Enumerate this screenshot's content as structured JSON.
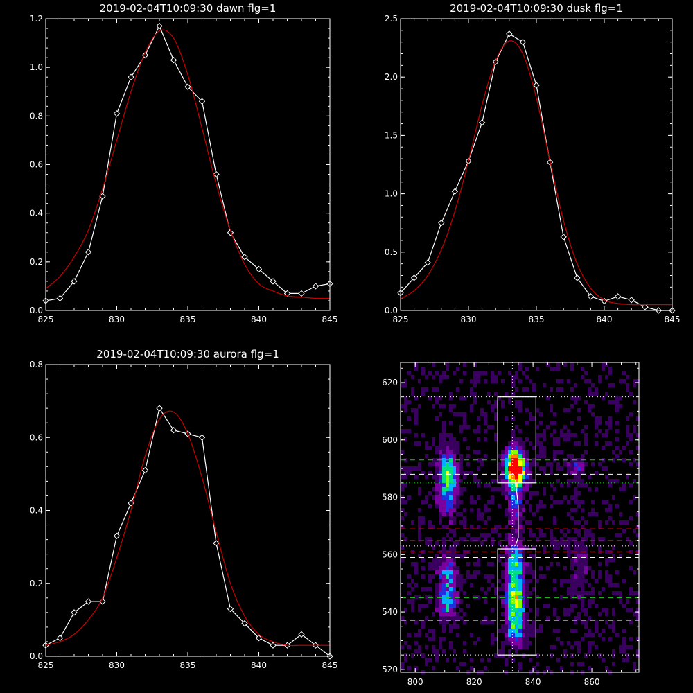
{
  "colors": {
    "background": "#000000",
    "axis": "#ffffff",
    "data_line": "#ffffff",
    "fit_line": "#cc0000"
  },
  "chart_data": [
    {
      "type": "line",
      "title": "2019-02-04T10:09:30 dawn flg=1",
      "xlim": [
        825,
        845
      ],
      "ylim": [
        0,
        1.2
      ],
      "xticks": [
        "825",
        "830",
        "835",
        "840",
        "845"
      ],
      "yticks": [
        "0.0",
        "0.2",
        "0.4",
        "0.6",
        "0.8",
        "1.0",
        "1.2"
      ],
      "series": [
        {
          "kind": "data",
          "marker": "diamond",
          "color": "#ffffff",
          "x": [
            825,
            826,
            827,
            828,
            829,
            830,
            831,
            832,
            833,
            834,
            835,
            836,
            837,
            838,
            839,
            840,
            841,
            842,
            843,
            844,
            845
          ],
          "y": [
            0.04,
            0.05,
            0.12,
            0.24,
            0.47,
            0.81,
            0.96,
            1.05,
            1.17,
            1.03,
            0.92,
            0.86,
            0.56,
            0.32,
            0.22,
            0.17,
            0.12,
            0.07,
            0.07,
            0.1,
            0.11
          ]
        },
        {
          "kind": "fit",
          "color": "#cc0000",
          "x": [
            825,
            826,
            827,
            828,
            829,
            830,
            831,
            832,
            833,
            834,
            835,
            836,
            837,
            838,
            839,
            840,
            841,
            842,
            843,
            844,
            845
          ],
          "y": [
            0.09,
            0.14,
            0.22,
            0.33,
            0.5,
            0.7,
            0.9,
            1.06,
            1.15,
            1.12,
            0.97,
            0.75,
            0.52,
            0.33,
            0.19,
            0.11,
            0.08,
            0.06,
            0.055,
            0.05,
            0.05
          ]
        }
      ]
    },
    {
      "type": "line",
      "title": "2019-02-04T10:09:30 dusk flg=1",
      "xlim": [
        825,
        845
      ],
      "ylim": [
        0,
        2.5
      ],
      "xticks": [
        "825",
        "830",
        "835",
        "840",
        "845"
      ],
      "yticks": [
        "0.0",
        "0.5",
        "1.0",
        "1.5",
        "2.0",
        "2.5"
      ],
      "series": [
        {
          "kind": "data",
          "marker": "diamond",
          "color": "#ffffff",
          "x": [
            825,
            826,
            827,
            828,
            829,
            830,
            831,
            832,
            833,
            834,
            835,
            836,
            837,
            838,
            839,
            840,
            841,
            842,
            843,
            844,
            845
          ],
          "y": [
            0.15,
            0.28,
            0.41,
            0.75,
            1.02,
            1.28,
            1.61,
            2.13,
            2.37,
            2.3,
            1.93,
            1.27,
            0.63,
            0.28,
            0.12,
            0.08,
            0.12,
            0.09,
            0.03,
            0.0,
            0.0
          ]
        },
        {
          "kind": "fit",
          "color": "#cc0000",
          "x": [
            825,
            826,
            827,
            828,
            829,
            830,
            831,
            832,
            833,
            834,
            835,
            836,
            837,
            838,
            839,
            840,
            841,
            842,
            843,
            844,
            845
          ],
          "y": [
            0.1,
            0.17,
            0.3,
            0.52,
            0.85,
            1.28,
            1.76,
            2.14,
            2.31,
            2.2,
            1.82,
            1.28,
            0.77,
            0.4,
            0.19,
            0.09,
            0.06,
            0.05,
            0.05,
            0.05,
            0.05
          ]
        }
      ]
    },
    {
      "type": "line",
      "title": "2019-02-04T10:09:30 aurora flg=1",
      "xlim": [
        825,
        845
      ],
      "ylim": [
        0,
        0.8
      ],
      "xticks": [
        "825",
        "830",
        "835",
        "840",
        "845"
      ],
      "yticks": [
        "0.0",
        "0.2",
        "0.4",
        "0.6",
        "0.8"
      ],
      "series": [
        {
          "kind": "data",
          "marker": "diamond",
          "color": "#ffffff",
          "x": [
            825,
            826,
            827,
            828,
            829,
            830,
            831,
            832,
            833,
            834,
            835,
            836,
            837,
            838,
            839,
            840,
            841,
            842,
            843,
            844,
            845
          ],
          "y": [
            0.03,
            0.05,
            0.12,
            0.15,
            0.15,
            0.33,
            0.42,
            0.51,
            0.68,
            0.62,
            0.61,
            0.6,
            0.31,
            0.13,
            0.09,
            0.05,
            0.03,
            0.03,
            0.06,
            0.03,
            0.0
          ]
        },
        {
          "kind": "fit",
          "color": "#cc0000",
          "x": [
            825,
            826,
            827,
            828,
            829,
            830,
            831,
            832,
            833,
            834,
            835,
            836,
            837,
            838,
            839,
            840,
            841,
            842,
            843,
            844,
            845
          ],
          "y": [
            0.03,
            0.04,
            0.06,
            0.1,
            0.16,
            0.27,
            0.4,
            0.55,
            0.65,
            0.67,
            0.61,
            0.49,
            0.34,
            0.2,
            0.11,
            0.06,
            0.04,
            0.03,
            0.03,
            0.03,
            0.03
          ]
        }
      ]
    },
    {
      "type": "heatmap",
      "title": "",
      "xlim": [
        795,
        876
      ],
      "ylim": [
        519,
        627
      ],
      "xticks": [
        "800",
        "820",
        "840",
        "860"
      ],
      "yticks": [
        "520",
        "540",
        "560",
        "580",
        "600",
        "620"
      ],
      "colormap": [
        "#000000",
        "#3a0060",
        "#7a00a0",
        "#2030e0",
        "#00b0ff",
        "#00e080",
        "#80ff00",
        "#ffff00",
        "#ff8000",
        "#ff0000"
      ],
      "blobs": [
        {
          "cx": 811,
          "cy": 589,
          "sx": 2.0,
          "sy": 5,
          "amp": 0.55
        },
        {
          "cx": 811,
          "cy": 580,
          "sx": 2.0,
          "sy": 5,
          "amp": 0.3
        },
        {
          "cx": 811,
          "cy": 554,
          "sx": 2.0,
          "sy": 5,
          "amp": 0.33
        },
        {
          "cx": 811,
          "cy": 543,
          "sx": 2.0,
          "sy": 4,
          "amp": 0.38
        },
        {
          "cx": 834,
          "cy": 589,
          "sx": 2.2,
          "sy": 3.5,
          "amp": 1.0
        },
        {
          "cx": 834,
          "cy": 594,
          "sx": 2.2,
          "sy": 3.0,
          "amp": 0.45
        },
        {
          "cx": 834,
          "cy": 578,
          "sx": 1.8,
          "sy": 6,
          "amp": 0.28
        },
        {
          "cx": 834,
          "cy": 556,
          "sx": 2.0,
          "sy": 6,
          "amp": 0.55
        },
        {
          "cx": 834,
          "cy": 543,
          "sx": 2.2,
          "sy": 5,
          "amp": 0.55
        },
        {
          "cx": 834,
          "cy": 533,
          "sx": 2.0,
          "sy": 4,
          "amp": 0.35
        },
        {
          "cx": 855,
          "cy": 590,
          "sx": 2.0,
          "sy": 3,
          "amp": 0.22
        },
        {
          "cx": 856,
          "cy": 555,
          "sx": 2.5,
          "sy": 10,
          "amp": 0.12
        }
      ],
      "rectangles": [
        {
          "x0": 828,
          "x1": 841,
          "y0": 585,
          "y1": 615
        },
        {
          "x0": 828,
          "x1": 841,
          "y0": 525,
          "y1": 562
        }
      ],
      "hlines": [
        {
          "y": 615,
          "color": "#ffffff",
          "style": "dotted"
        },
        {
          "y": 593,
          "color": "#22cc22",
          "style": "dashed"
        },
        {
          "y": 588,
          "color": "#ffffff",
          "style": "dashed"
        },
        {
          "y": 585,
          "color": "#22cc22",
          "style": "dotted"
        },
        {
          "y": 569,
          "color": "#cc0000",
          "style": "dashed"
        },
        {
          "y": 565,
          "color": "#cc0000",
          "style": "dashed"
        },
        {
          "y": 563,
          "color": "#ffffff",
          "style": "dotted"
        },
        {
          "y": 561,
          "color": "#cc0000",
          "style": "dashed"
        },
        {
          "y": 559,
          "color": "#ffffff",
          "style": "dashed"
        },
        {
          "y": 545,
          "color": "#22cc22",
          "style": "dashed"
        },
        {
          "y": 537,
          "color": "#22cc22",
          "style": "dashed"
        },
        {
          "y": 525,
          "color": "#ffffff",
          "style": "dotted"
        }
      ],
      "vline": {
        "x": 833,
        "color": "#ffffff",
        "style": "dotted"
      },
      "vtrace": {
        "x": [
          834,
          835,
          835,
          834
        ],
        "y": [
          586,
          577,
          566,
          563
        ],
        "color": "#ffffff"
      }
    }
  ]
}
